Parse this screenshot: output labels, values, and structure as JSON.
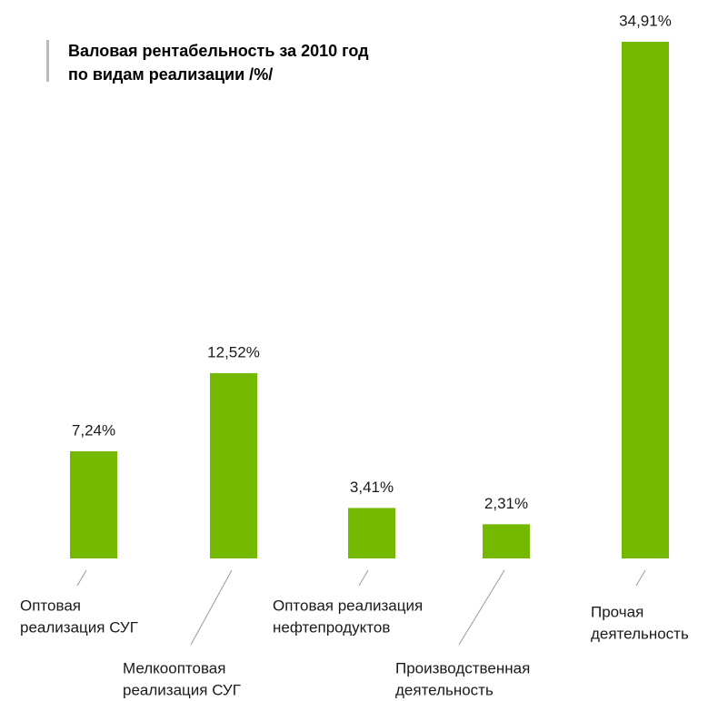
{
  "chart_data": {
    "type": "bar",
    "title": [
      "Валовая рентабельность за 2010 год",
      "по видам реализации /%/"
    ],
    "categories": [
      [
        "Оптовая",
        "реализация СУГ"
      ],
      [
        "Мелкооптовая",
        "реализация СУГ"
      ],
      [
        "Оптовая реализация",
        "нефтепродуктов"
      ],
      [
        "Производственная",
        "деятельность"
      ],
      [
        "Прочая",
        "деятельность"
      ]
    ],
    "values": [
      7.24,
      12.52,
      3.41,
      2.31,
      34.91
    ],
    "value_labels": [
      "7,24%",
      "12,52%",
      "3,41%",
      "2,31%",
      "34,91%"
    ],
    "color": "#74b800"
  }
}
